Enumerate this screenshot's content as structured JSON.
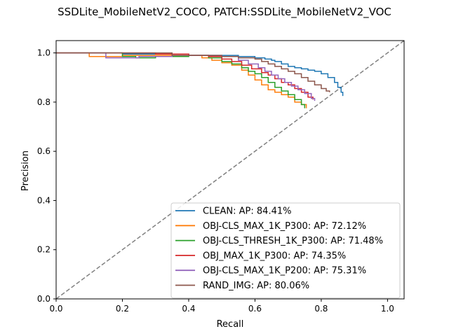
{
  "chart_data": {
    "type": "line",
    "title": "SSDLite_MobileNetV2_COCO, PATCH:SSDLite_MobileNetV2_VOC",
    "xlabel": "Recall",
    "ylabel": "Precision",
    "xlim": [
      0.0,
      1.05
    ],
    "ylim": [
      0.0,
      1.05
    ],
    "xticks": [
      "0.0",
      "0.2",
      "0.4",
      "0.6",
      "0.8",
      "1.0"
    ],
    "yticks": [
      "0.0",
      "0.2",
      "0.4",
      "0.6",
      "0.8",
      "1.0"
    ],
    "grid": false,
    "legend_position": "lower-right",
    "diagonal": {
      "style": "dashed",
      "color": "#808080",
      "from": [
        0,
        0
      ],
      "to": [
        1.05,
        1.05
      ]
    },
    "series": [
      {
        "name": "CLEAN: AP: 84.41%",
        "color": "#1f77b4",
        "x": [
          0.0,
          0.2,
          0.2,
          0.4,
          0.55,
          0.6,
          0.63,
          0.65,
          0.66,
          0.68,
          0.7,
          0.72,
          0.74,
          0.76,
          0.78,
          0.8,
          0.82,
          0.84,
          0.85,
          0.86,
          0.865
        ],
        "y": [
          1.0,
          1.0,
          0.995,
          0.99,
          0.985,
          0.98,
          0.975,
          0.97,
          0.965,
          0.955,
          0.945,
          0.94,
          0.935,
          0.93,
          0.925,
          0.915,
          0.9,
          0.88,
          0.86,
          0.84,
          0.825
        ]
      },
      {
        "name": "OBJ-CLS_MAX_1K_P300: AP: 72.12%",
        "color": "#ff7f0e",
        "x": [
          0.0,
          0.1,
          0.1,
          0.2,
          0.3,
          0.4,
          0.44,
          0.47,
          0.5,
          0.53,
          0.56,
          0.58,
          0.6,
          0.62,
          0.64,
          0.66,
          0.68,
          0.7,
          0.72,
          0.74,
          0.755
        ],
        "y": [
          1.0,
          1.0,
          0.985,
          0.99,
          0.99,
          0.99,
          0.98,
          0.97,
          0.96,
          0.95,
          0.93,
          0.91,
          0.89,
          0.87,
          0.85,
          0.84,
          0.83,
          0.82,
          0.8,
          0.79,
          0.775
        ]
      },
      {
        "name": "OBJ-CLS_THRESH_1K_P300: AP: 71.48%",
        "color": "#2ca02c",
        "x": [
          0.0,
          0.1,
          0.2,
          0.24,
          0.3,
          0.4,
          0.46,
          0.5,
          0.53,
          0.56,
          0.58,
          0.6,
          0.62,
          0.64,
          0.66,
          0.68,
          0.7,
          0.72,
          0.74,
          0.75
        ],
        "y": [
          1.0,
          1.0,
          0.985,
          0.98,
          0.985,
          0.99,
          0.98,
          0.965,
          0.955,
          0.94,
          0.925,
          0.915,
          0.9,
          0.88,
          0.86,
          0.845,
          0.83,
          0.81,
          0.79,
          0.775
        ]
      },
      {
        "name": "OBJ_MAX_1K_P300: AP: 74.35%",
        "color": "#d62728",
        "x": [
          0.0,
          0.2,
          0.3,
          0.4,
          0.46,
          0.5,
          0.53,
          0.56,
          0.59,
          0.62,
          0.64,
          0.66,
          0.68,
          0.7,
          0.72,
          0.74,
          0.76,
          0.775
        ],
        "y": [
          1.0,
          1.0,
          0.995,
          0.99,
          0.985,
          0.975,
          0.965,
          0.95,
          0.935,
          0.92,
          0.91,
          0.895,
          0.88,
          0.87,
          0.855,
          0.84,
          0.82,
          0.81
        ]
      },
      {
        "name": "OBJ-CLS_MAX_1K_P200: AP: 75.31%",
        "color": "#9467bd",
        "x": [
          0.0,
          0.14,
          0.15,
          0.25,
          0.35,
          0.45,
          0.5,
          0.55,
          0.58,
          0.61,
          0.63,
          0.65,
          0.67,
          0.69,
          0.71,
          0.73,
          0.75,
          0.77,
          0.78
        ],
        "y": [
          1.0,
          1.0,
          0.98,
          0.985,
          0.99,
          0.99,
          0.985,
          0.97,
          0.955,
          0.94,
          0.925,
          0.91,
          0.895,
          0.88,
          0.865,
          0.85,
          0.835,
          0.815,
          0.805
        ]
      },
      {
        "name": "RAND_IMG: AP: 80.06%",
        "color": "#8c564b",
        "x": [
          0.0,
          0.25,
          0.35,
          0.45,
          0.5,
          0.55,
          0.6,
          0.62,
          0.64,
          0.66,
          0.68,
          0.7,
          0.72,
          0.74,
          0.76,
          0.78,
          0.8,
          0.815,
          0.825
        ],
        "y": [
          1.0,
          1.0,
          0.99,
          0.99,
          0.985,
          0.98,
          0.975,
          0.965,
          0.955,
          0.945,
          0.935,
          0.925,
          0.915,
          0.9,
          0.885,
          0.87,
          0.855,
          0.845,
          0.84
        ]
      }
    ]
  }
}
